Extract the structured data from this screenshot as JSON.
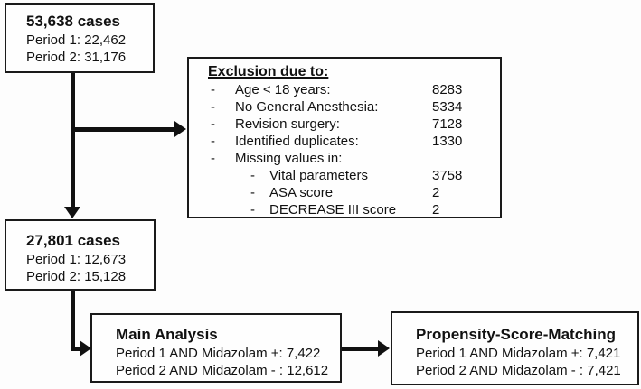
{
  "diagram": {
    "box_total": {
      "title": "53,638 cases",
      "lines": [
        "Period 1: 22,462",
        "Period 2: 31,176"
      ]
    },
    "box_exclusion": {
      "title": "Exclusion due to:",
      "items": [
        {
          "label": "Age < 18 years:",
          "value": "8283"
        },
        {
          "label": "No General Anesthesia:",
          "value": "5334"
        },
        {
          "label": "Revision surgery:",
          "value": "7128"
        },
        {
          "label": "Identified duplicates:",
          "value": "1330"
        },
        {
          "label": "Missing values in:",
          "value": ""
        },
        {
          "label": "Vital parameters",
          "value": "3758"
        },
        {
          "label": "ASA score",
          "value": "2"
        },
        {
          "label": "DECREASE III score",
          "value": "2"
        }
      ]
    },
    "box_included": {
      "title": "27,801 cases",
      "lines": [
        "Period 1: 12,673",
        "Period 2: 15,128"
      ]
    },
    "box_main": {
      "title": "Main Analysis",
      "lines": [
        "Period 1 AND Midazolam +: 7,422",
        "Period 2 AND Midazolam - : 12,612"
      ]
    },
    "box_psm": {
      "title": "Propensity-Score-Matching",
      "lines": [
        "Period 1 AND Midazolam +: 7,421",
        "Period 2 AND Midazolam - : 7,421"
      ]
    },
    "colors": {
      "border": "#1a1a1a",
      "text": "#111111",
      "background": "#fdfdfd"
    }
  }
}
